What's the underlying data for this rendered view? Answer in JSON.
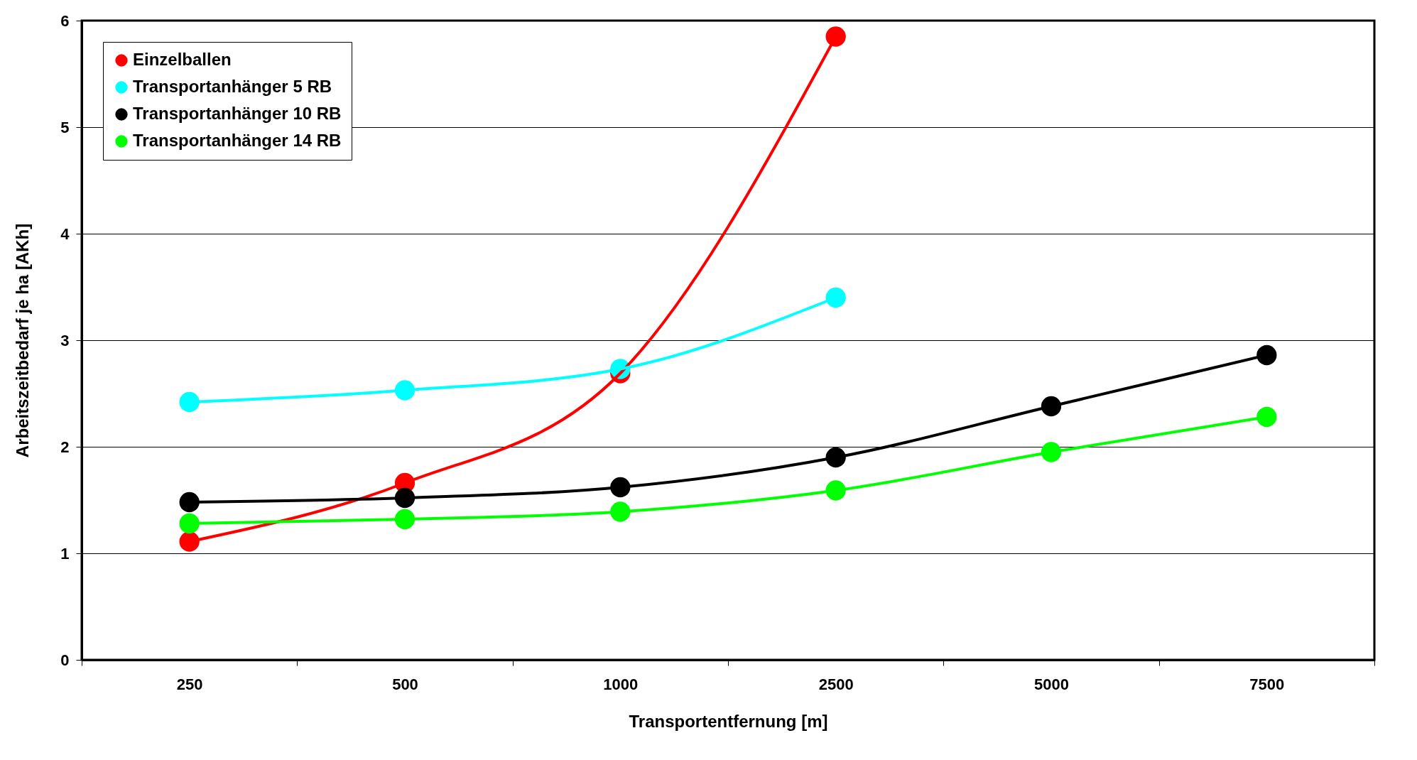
{
  "chart_data": {
    "type": "line",
    "xlabel": "Transportentfernung [m]",
    "ylabel": "Arbeitszeitbedarf je ha [AKh]",
    "categories": [
      "250",
      "500",
      "1000",
      "2500",
      "5000",
      "7500"
    ],
    "series": [
      {
        "name": "Einzelballen",
        "color": "#ff0000",
        "values": [
          1.11,
          1.66,
          2.69,
          5.85,
          null,
          null
        ]
      },
      {
        "name": "Transportanhänger 5 RB",
        "color": "#00ffff",
        "values": [
          2.42,
          2.53,
          2.73,
          3.4,
          null,
          null
        ]
      },
      {
        "name": "Transportanhänger 10 RB",
        "color": "#000000",
        "values": [
          1.48,
          1.52,
          1.62,
          1.9,
          2.38,
          2.86
        ]
      },
      {
        "name": "Transportanhänger 14 RB",
        "color": "#00ff00",
        "values": [
          1.28,
          1.32,
          1.39,
          1.59,
          1.95,
          2.28
        ]
      }
    ],
    "ylim": [
      0,
      6
    ],
    "yticks": [
      0,
      1,
      2,
      3,
      4,
      5,
      6
    ],
    "grid": "y",
    "legend": "top left",
    "marker": "circle",
    "line_style": "solid"
  }
}
